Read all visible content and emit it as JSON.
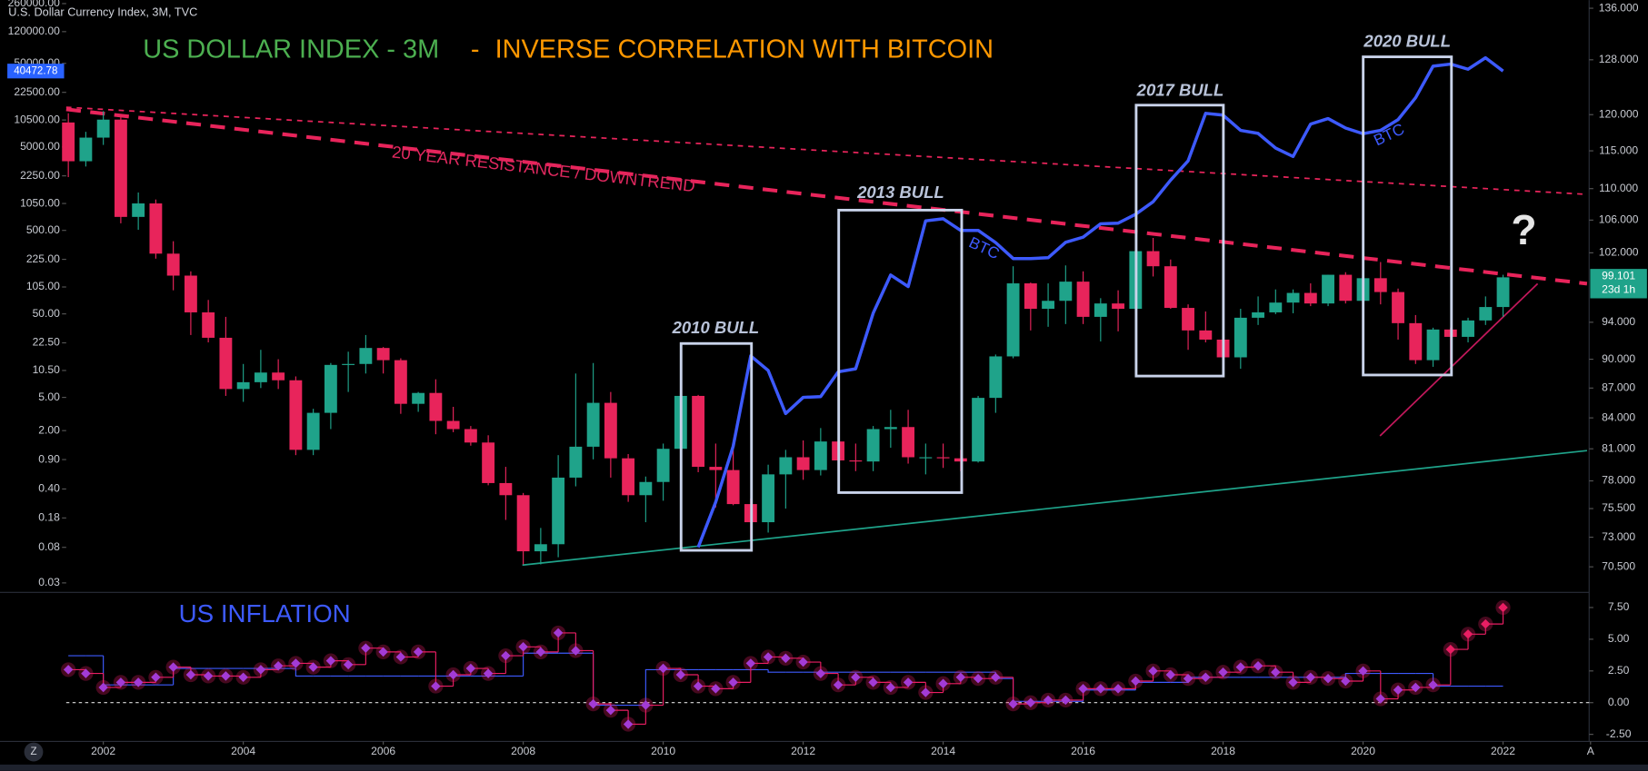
{
  "chart_data": [
    {
      "type": "candlestick",
      "source": "U.S. Dollar Currency Index, 3M, TVC",
      "title": "US DOLLAR INDEX - 3M",
      "title_separator": "-",
      "subtitle": "INVERSE CORRELATION WITH BITCOIN",
      "countdown": "23d 1h",
      "up_color": "#1fa38a",
      "down_color": "#e8245b",
      "x": [
        2001.5,
        2001.75,
        2002,
        2002.25,
        2002.5,
        2002.75,
        2003,
        2003.25,
        2003.5,
        2003.75,
        2004,
        2004.25,
        2004.5,
        2004.75,
        2005,
        2005.25,
        2005.5,
        2005.75,
        2006,
        2006.25,
        2006.5,
        2006.75,
        2007,
        2007.25,
        2007.5,
        2007.75,
        2008,
        2008.25,
        2008.5,
        2008.75,
        2009,
        2009.25,
        2009.5,
        2009.75,
        2010,
        2010.25,
        2010.5,
        2010.75,
        2011,
        2011.25,
        2011.5,
        2011.75,
        2012,
        2012.25,
        2012.5,
        2012.75,
        2013,
        2013.25,
        2013.5,
        2013.75,
        2014,
        2014.25,
        2014.5,
        2014.75,
        2015,
        2015.25,
        2015.5,
        2015.75,
        2016,
        2016.25,
        2016.5,
        2016.75,
        2017,
        2017.25,
        2017.5,
        2017.75,
        2018,
        2018.25,
        2018.5,
        2018.75,
        2019,
        2019.25,
        2019.5,
        2019.75,
        2020,
        2020.25,
        2020.5,
        2020.75,
        2021,
        2021.25,
        2021.5,
        2021.75,
        2022
      ],
      "open": [
        118.9,
        113.6,
        116.8,
        119.3,
        106.4,
        108.1,
        101.9,
        99.3,
        95.1,
        92.3,
        86.9,
        87.6,
        88.6,
        87.8,
        80.9,
        84.5,
        89.4,
        89.5,
        91.2,
        89.9,
        85.4,
        86.5,
        83.7,
        82.9,
        81.6,
        77.8,
        76.7,
        71.8,
        72.4,
        78.3,
        81.2,
        85.5,
        80.1,
        76.7,
        77.9,
        81.0,
        86.2,
        79.3,
        79.0,
        75.9,
        74.3,
        78.6,
        80.2,
        79.0,
        81.7,
        79.9,
        79.8,
        82.9,
        83.1,
        80.2,
        80.2,
        80.1,
        79.8,
        86.0,
        90.3,
        98.4,
        95.5,
        96.4,
        98.6,
        94.6,
        96.1,
        95.5,
        102.2,
        100.4,
        95.6,
        93.1,
        92.1,
        90.2,
        94.5,
        95.1,
        96.2,
        97.3,
        96.1,
        99.4,
        96.4,
        99.0,
        97.4,
        93.9,
        89.9,
        93.2,
        92.4,
        94.2,
        95.7
      ],
      "high": [
        120.2,
        117.6,
        120.5,
        119.8,
        109.5,
        108.6,
        103.4,
        99.8,
        96.5,
        94.6,
        89.5,
        91.0,
        90.0,
        88.2,
        84.9,
        89.6,
        90.8,
        92.6,
        91.3,
        90.1,
        86.6,
        87.9,
        85.1,
        83.2,
        82.3,
        79.3,
        76.9,
        73.8,
        80.4,
        88.5,
        89.6,
        86.6,
        80.5,
        78.4,
        81.5,
        88.7,
        86.3,
        81.5,
        81.2,
        76.4,
        79.5,
        80.9,
        81.8,
        83.0,
        84.1,
        81.5,
        83.2,
        84.8,
        84.8,
        81.5,
        81.5,
        80.9,
        86.2,
        90.5,
        100.4,
        98.5,
        98.4,
        100.5,
        99.8,
        96.7,
        97.6,
        103.8,
        103.8,
        101.2,
        96.0,
        95.2,
        92.6,
        95.5,
        96.9,
        97.7,
        97.7,
        98.4,
        99.4,
        99.7,
        103.0,
        100.9,
        97.8,
        94.8,
        93.4,
        93.4,
        94.5,
        96.9,
        99.4
      ],
      "low": [
        111.5,
        112.9,
        115.8,
        105.6,
        104.8,
        101.3,
        97.6,
        92.6,
        91.8,
        86.2,
        85.6,
        87.0,
        86.9,
        80.4,
        80.4,
        82.9,
        86.6,
        88.5,
        88.5,
        84.4,
        84.6,
        82.4,
        82.6,
        81.3,
        77.6,
        74.5,
        70.7,
        70.7,
        71.3,
        77.5,
        80.0,
        78.3,
        76.1,
        74.3,
        76.2,
        80.1,
        78.8,
        75.6,
        75.8,
        72.7,
        73.4,
        75.5,
        78.1,
        78.5,
        78.6,
        78.9,
        78.9,
        81.1,
        79.6,
        78.6,
        79.2,
        78.9,
        79.7,
        84.5,
        90.1,
        93.1,
        93.5,
        93.8,
        93.8,
        91.9,
        93.0,
        94.3,
        99.2,
        95.5,
        91.0,
        91.8,
        88.3,
        89.0,
        93.7,
        94.9,
        95.0,
        95.8,
        95.8,
        96.1,
        94.7,
        96.0,
        92.1,
        89.5,
        89.2,
        89.5,
        91.8,
        93.7,
        94.6
      ],
      "close": [
        113.6,
        116.8,
        119.3,
        106.4,
        108.1,
        101.9,
        99.3,
        95.1,
        92.3,
        86.9,
        87.6,
        88.6,
        87.8,
        80.9,
        84.5,
        89.4,
        89.5,
        91.2,
        89.9,
        85.4,
        86.5,
        83.7,
        82.9,
        81.6,
        77.8,
        76.7,
        71.8,
        72.4,
        78.3,
        81.2,
        85.5,
        80.1,
        76.7,
        77.9,
        81.0,
        86.2,
        79.3,
        79.0,
        75.9,
        74.3,
        78.6,
        80.2,
        79.0,
        81.7,
        79.9,
        79.8,
        82.9,
        83.1,
        80.2,
        80.2,
        80.1,
        79.8,
        86.0,
        90.3,
        98.4,
        95.5,
        96.4,
        98.6,
        94.6,
        96.1,
        95.5,
        102.2,
        100.4,
        95.6,
        93.1,
        92.1,
        90.2,
        94.5,
        95.1,
        96.2,
        97.3,
        96.1,
        99.4,
        96.4,
        99.0,
        97.4,
        93.9,
        89.9,
        93.2,
        92.4,
        94.2,
        95.7,
        99.101
      ],
      "xlim": [
        2001.47,
        2023.23
      ],
      "xticks": [
        2002,
        2004,
        2006,
        2008,
        2010,
        2012,
        2014,
        2016,
        2018,
        2020,
        2022,
        {
          "value": 2023.25,
          "label": "A"
        }
      ],
      "yscale": "log",
      "ylim": [
        68.5,
        137.3
      ],
      "yticks": [
        {
          "value": 136,
          "label": "136.000"
        },
        {
          "value": 128,
          "label": "128.000"
        },
        {
          "value": 120,
          "label": "120.000"
        },
        {
          "value": 115,
          "label": "115.000"
        },
        {
          "value": 110,
          "label": "110.000"
        },
        {
          "value": 106,
          "label": "106.000"
        },
        {
          "value": 102,
          "label": "102.000"
        },
        {
          "value": 94,
          "label": "94.000"
        },
        {
          "value": 90,
          "label": "90.000"
        },
        {
          "value": 87,
          "label": "87.000"
        },
        {
          "value": 84,
          "label": "84.000"
        },
        {
          "value": 81,
          "label": "81.000"
        },
        {
          "value": 78,
          "label": "78.000"
        },
        {
          "value": 75.5,
          "label": "75.500"
        },
        {
          "value": 73,
          "label": "73.000"
        },
        {
          "value": 70.5,
          "label": "70.500"
        }
      ],
      "y2scale": "log",
      "y2lim": [
        0.0238,
        286000
      ],
      "y2ticks": [
        {
          "value": 260000,
          "label": "260000.00"
        },
        {
          "value": 120000,
          "label": "120000.00"
        },
        {
          "value": 50000,
          "label": "50000.00"
        },
        {
          "value": 22500,
          "label": "22500.00"
        },
        {
          "value": 10500,
          "label": "10500.00"
        },
        {
          "value": 5000,
          "label": "5000.00"
        },
        {
          "value": 2250,
          "label": "2250.00"
        },
        {
          "value": 1050,
          "label": "1050.00"
        },
        {
          "value": 500,
          "label": "500.00"
        },
        {
          "value": 225,
          "label": "225.00"
        },
        {
          "value": 105,
          "label": "105.00"
        },
        {
          "value": 50,
          "label": "50.00"
        },
        {
          "value": 22.5,
          "label": "22.50"
        },
        {
          "value": 10.5,
          "label": "10.50"
        },
        {
          "value": 5,
          "label": "5.00"
        },
        {
          "value": 2,
          "label": "2.00"
        },
        {
          "value": 0.9,
          "label": "0.90"
        },
        {
          "value": 0.4,
          "label": "0.40"
        },
        {
          "value": 0.18,
          "label": "0.18"
        },
        {
          "value": 0.08,
          "label": "0.08"
        },
        {
          "value": 0.03,
          "label": "0.03"
        }
      ],
      "series": [
        {
          "color": "#3d5afe",
          "axis": "y2",
          "x": [
            2010.5,
            2010.75,
            2011,
            2011.25,
            2011.5,
            2011.75,
            2012,
            2012.25,
            2012.5,
            2012.75,
            2013,
            2013.25,
            2013.5,
            2013.75,
            2014,
            2014.25,
            2014.5,
            2014.75,
            2015,
            2015.25,
            2015.5,
            2015.75,
            2016,
            2016.25,
            2016.5,
            2016.75,
            2017,
            2017.25,
            2017.5,
            2017.75,
            2018,
            2018.25,
            2018.5,
            2018.75,
            2019,
            2019.25,
            2019.5,
            2019.75,
            2020,
            2020.25,
            2020.5,
            2020.75,
            2021,
            2021.25,
            2021.5,
            2021.75,
            2022
          ],
          "values": [
            0.08,
            0.28,
            1.3,
            15.7,
            10.5,
            3.2,
            5,
            5.1,
            10.1,
            11,
            51,
            146,
            106,
            650,
            690,
            500,
            500,
            357,
            230,
            230,
            235,
            360,
            415,
            600,
            610,
            780,
            1100,
            2000,
            3400,
            12600,
            12000,
            7900,
            7260,
            4840,
            3840,
            9400,
            10900,
            8400,
            7200,
            7900,
            10600,
            19400,
            46300,
            49100,
            42500,
            58400,
            40472.78
          ]
        }
      ],
      "annotations": {
        "resistance": "20 YEAR RESISTANCE / DOWNTREND",
        "bull_2010": "2010 BULL",
        "bull_2013": "2013 BULL",
        "bull_2017": "2017 BULL",
        "bull_2020": "2020 BULL",
        "btc_labels": [
          "BTC",
          "BTC"
        ],
        "question": "?"
      }
    },
    {
      "type": "line",
      "title": "US INFLATION",
      "step": true,
      "x": [
        2001.5,
        2001.75,
        2002,
        2002.25,
        2002.5,
        2002.75,
        2003,
        2003.25,
        2003.5,
        2003.75,
        2004,
        2004.25,
        2004.5,
        2004.75,
        2005,
        2005.25,
        2005.5,
        2005.75,
        2006,
        2006.25,
        2006.5,
        2006.75,
        2007,
        2007.25,
        2007.5,
        2007.75,
        2008,
        2008.25,
        2008.5,
        2008.75,
        2009,
        2009.25,
        2009.5,
        2009.75,
        2010,
        2010.25,
        2010.5,
        2010.75,
        2011,
        2011.25,
        2011.5,
        2011.75,
        2012,
        2012.25,
        2012.5,
        2012.75,
        2013,
        2013.25,
        2013.5,
        2013.75,
        2014,
        2014.25,
        2014.5,
        2014.75,
        2015,
        2015.25,
        2015.5,
        2015.75,
        2016,
        2016.25,
        2016.5,
        2016.75,
        2017,
        2017.25,
        2017.5,
        2017.75,
        2018,
        2018.25,
        2018.5,
        2018.75,
        2019,
        2019.25,
        2019.5,
        2019.75,
        2020,
        2020.25,
        2020.5,
        2020.75,
        2021,
        2021.25,
        2021.5,
        2021.75,
        2022
      ],
      "ylim": [
        -3.06,
        8.53
      ],
      "yticks": [
        {
          "value": 7.5,
          "label": "7.50"
        },
        {
          "value": 5,
          "label": "5.00"
        },
        {
          "value": 2.5,
          "label": "2.50"
        },
        {
          "value": 0,
          "label": "0.00"
        },
        {
          "value": -2.5,
          "label": "-2.50"
        }
      ],
      "reference_line": 0,
      "series": [
        {
          "color": "#e91e63",
          "marker_color": "#a33bd6",
          "values": [
            2.6,
            2.3,
            1.2,
            1.6,
            1.6,
            2.0,
            2.8,
            2.2,
            2.1,
            2.1,
            2.0,
            2.6,
            2.9,
            3.1,
            2.8,
            3.3,
            3.0,
            4.3,
            4.0,
            3.6,
            4.0,
            1.3,
            2.2,
            2.7,
            2.3,
            3.7,
            4.4,
            4.0,
            5.5,
            4.1,
            -0.1,
            -0.6,
            -1.7,
            -0.2,
            2.7,
            2.2,
            1.3,
            1.1,
            1.6,
            3.1,
            3.6,
            3.5,
            3.2,
            2.3,
            1.4,
            2.0,
            1.6,
            1.2,
            1.6,
            0.8,
            1.5,
            2.0,
            1.9,
            2.0,
            -0.1,
            0.0,
            0.2,
            0.2,
            1.1,
            1.1,
            1.1,
            1.7,
            2.5,
            2.2,
            1.9,
            2.0,
            2.4,
            2.8,
            2.9,
            2.4,
            1.6,
            2.0,
            1.9,
            1.7,
            2.5,
            0.3,
            1.0,
            1.2,
            1.4,
            4.2,
            5.4,
            6.2,
            7.5
          ]
        },
        {
          "color": "#3d5afe",
          "values": [
            3.7,
            3.7,
            1.4,
            1.4,
            1.4,
            1.4,
            2.7,
            2.7,
            2.7,
            2.7,
            2.7,
            2.7,
            2.7,
            2.1,
            2.1,
            2.1,
            2.1,
            2.1,
            2.1,
            2.1,
            2.1,
            2.1,
            2.1,
            2.1,
            2.1,
            2.1,
            3.9,
            3.9,
            3.9,
            3.9,
            -0.2,
            -0.2,
            -0.2,
            2.6,
            2.6,
            2.6,
            2.6,
            2.6,
            2.6,
            2.6,
            2.4,
            2.4,
            2.4,
            2.4,
            2.4,
            2.4,
            2.4,
            2.4,
            2.4,
            2.4,
            2.4,
            2.4,
            2.4,
            1.9,
            0.1,
            0.1,
            0.1,
            0.1,
            1.0,
            1.0,
            1.0,
            1.6,
            1.6,
            1.6,
            2.0,
            2.0,
            2.0,
            2.0,
            2.0,
            2.0,
            2.0,
            2.0,
            2.0,
            2.3,
            2.3,
            2.3,
            2.3,
            2.3,
            1.3,
            1.3,
            1.3,
            1.3,
            1.3
          ]
        }
      ]
    }
  ]
}
